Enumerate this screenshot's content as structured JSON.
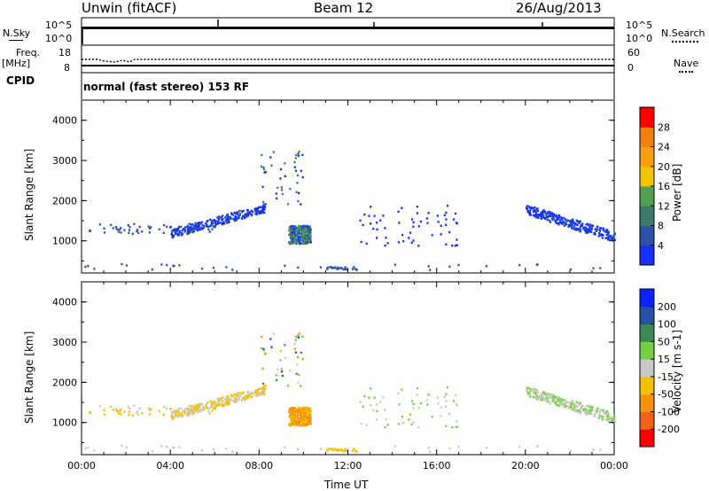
{
  "header": {
    "station": "Unwin (fitACF)",
    "beam": "Beam 12",
    "date": "26/Aug/2013"
  },
  "top_panels": {
    "nsky_label": "N.Sky",
    "nsky_ticks": [
      "10^5",
      "10^0"
    ],
    "nsearch_label": "N.Search",
    "nsearch_ticks": [
      "10^5",
      "10^0"
    ],
    "freq_label": "Freq.",
    "freq_unit": "[MHz]",
    "freq_ticks": [
      "18",
      "8"
    ],
    "nave_label": "Nave",
    "nave_ticks": [
      "60",
      "0"
    ],
    "cpid_label": "CPID",
    "cpid_text": "normal (fast stereo) 153 RF"
  },
  "chart_data": [
    {
      "type": "heatmap",
      "name": "power",
      "ylabel": "Slant Range [km]",
      "ylim": [
        200,
        4500
      ],
      "yticks": [
        1000,
        2000,
        3000,
        4000
      ],
      "xlim": [
        0,
        24
      ],
      "xticks": [
        "00:00",
        "04:00",
        "08:00",
        "12:00",
        "16:00",
        "20:00",
        "00:00"
      ],
      "colorbar": {
        "label": "Power [dB]",
        "ticks": [
          "4",
          "8",
          "12",
          "16",
          "20",
          "24",
          "28"
        ],
        "colors": [
          "#1530ff",
          "#2a52a8",
          "#3e7a6e",
          "#4fa050",
          "#f2c400",
          "#f6a010",
          "#f08010",
          "#ff0000"
        ]
      }
    },
    {
      "type": "heatmap",
      "name": "velocity",
      "ylabel": "Slant Range [km]",
      "xlabel": "Time UT",
      "ylim": [
        200,
        4500
      ],
      "yticks": [
        1000,
        2000,
        3000,
        4000
      ],
      "xlim": [
        0,
        24
      ],
      "xticks": [
        "00:00",
        "04:00",
        "08:00",
        "12:00",
        "16:00",
        "20:00",
        "00:00"
      ],
      "colorbar": {
        "label": "Velocity [m s-1]",
        "ticks": [
          "200",
          "100",
          "50",
          "15",
          "-15",
          "-50",
          "-100",
          "-200"
        ],
        "colors": [
          "#0a22ff",
          "#2a4fa6",
          "#3c8a55",
          "#76cf40",
          "#c8c8c8",
          "#f5c000",
          "#f59010",
          "#f06018",
          "#ff0000"
        ]
      }
    }
  ]
}
